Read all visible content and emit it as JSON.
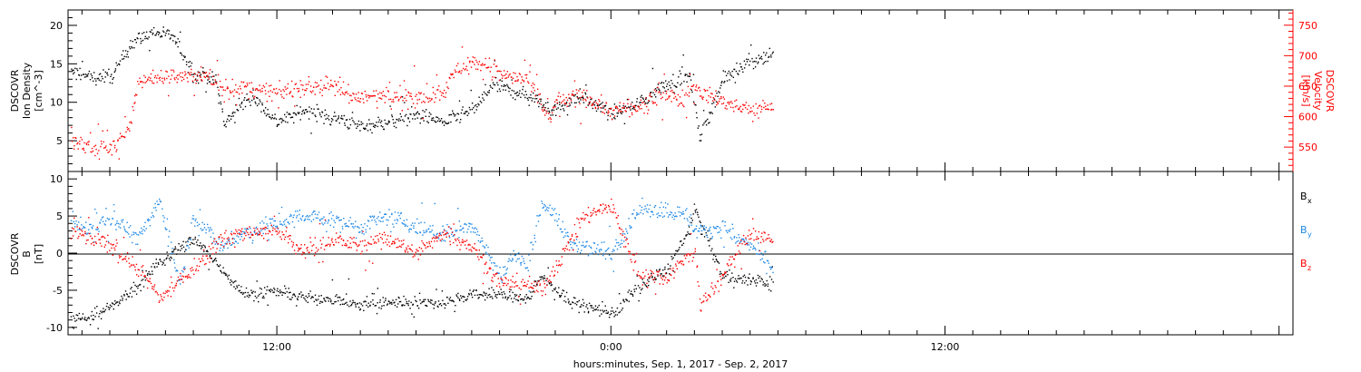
{
  "chart_data": [
    {
      "type": "scatter",
      "panel": "top",
      "ylabel_lines": [
        "DSCOVR",
        "Ion Density",
        "[cm^-3]"
      ],
      "ylabel_right_lines": [
        "DSCOVR",
        "Velocity",
        "[km/s]"
      ],
      "ylim": [
        1,
        22
      ],
      "yticks": [
        5,
        10,
        15,
        20
      ],
      "ylim_right": [
        510,
        775
      ],
      "yticks_right": [
        550,
        600,
        650,
        700,
        750
      ],
      "xlim_hours": [
        -19.5,
        24.5
      ],
      "xticks": [
        {
          "h": -12,
          "label": "12:00"
        },
        {
          "h": 0,
          "label": "0:00"
        },
        {
          "h": 12,
          "label": "12:00"
        }
      ],
      "series": [
        {
          "name": "",
          "axis": "left",
          "color": "#000000",
          "x": [
            -19.4,
            -18.7,
            -17.9,
            -17.2,
            -16.4,
            -15.8,
            -15.0,
            -14.2,
            -13.9,
            -13.5,
            -12.9,
            -12.0,
            -11.0,
            -10.0,
            -9.0,
            -8.0,
            -7.0,
            -6.0,
            -5.0,
            -4.2,
            -4.0,
            -3.0,
            -2.0,
            -1.2,
            0.0,
            1.0,
            2.0,
            2.8,
            3.2,
            4.0,
            5.0,
            5.8
          ],
          "y": [
            14.0,
            13.3,
            13.5,
            18.0,
            19.2,
            18.8,
            14.0,
            13.0,
            7.0,
            9.0,
            11.0,
            7.5,
            9.0,
            8.0,
            7.0,
            7.5,
            8.5,
            7.5,
            9.0,
            12.5,
            12.0,
            11.0,
            9.0,
            11.0,
            8.5,
            10.0,
            12.5,
            13.5,
            5.5,
            13.0,
            15.5,
            16.3
          ]
        },
        {
          "name": "",
          "axis": "right",
          "color": "#ff0000",
          "x": [
            -19.4,
            -18.7,
            -17.9,
            -17.3,
            -17.0,
            -16.4,
            -15.5,
            -14.5,
            -14.0,
            -13.0,
            -12.0,
            -11.0,
            -10.0,
            -9.0,
            -8.0,
            -7.0,
            -6.0,
            -5.5,
            -5.0,
            -4.2,
            -4.0,
            -3.0,
            -2.2,
            -2.0,
            -1.0,
            0.0,
            1.0,
            2.0,
            2.5,
            3.0,
            3.2,
            4.0,
            5.0,
            5.8
          ],
          "y": [
            560,
            551,
            552,
            580,
            660,
            665,
            668,
            665,
            650,
            645,
            640,
            650,
            650,
            630,
            640,
            630,
            645,
            680,
            690,
            680,
            670,
            660,
            595,
            625,
            635,
            610,
            615,
            640,
            625,
            655,
            640,
            625,
            610,
            620
          ]
        }
      ]
    },
    {
      "type": "scatter",
      "panel": "bottom",
      "ylabel_lines": [
        "DSCOVR",
        "B",
        "[nT]"
      ],
      "ylim": [
        -11,
        11
      ],
      "yticks": [
        -10,
        -5,
        0,
        5,
        10
      ],
      "xlim_hours": [
        -19.5,
        24.5
      ],
      "xlabel": "hours:minutes, Sep.  1, 2017 - Sep.  2, 2017",
      "xticks": [
        {
          "h": -12,
          "label": "12:00"
        },
        {
          "h": 0,
          "label": "0:00"
        },
        {
          "h": 12,
          "label": "12:00"
        }
      ],
      "zero_line": true,
      "series": [
        {
          "name": "Bx",
          "color": "#000000",
          "x": [
            -19.4,
            -18.7,
            -17.9,
            -17.0,
            -16.2,
            -15.0,
            -14.0,
            -13.2,
            -12.0,
            -11.0,
            -10.0,
            -9.0,
            -8.0,
            -7.0,
            -6.0,
            -5.0,
            -4.0,
            -3.0,
            -2.5,
            -1.5,
            -0.5,
            0.2,
            0.8,
            2.0,
            2.8,
            3.0,
            4.0,
            5.0,
            5.8
          ],
          "y": [
            -9,
            -8.5,
            -7,
            -4.5,
            -1,
            2,
            -2,
            -5.5,
            -5,
            -6,
            -6,
            -7,
            -6.5,
            -6.5,
            -6.5,
            -5.5,
            -5.5,
            -6,
            -3,
            -6.5,
            -7.5,
            -8,
            -5,
            -2,
            3,
            6,
            -3,
            -3.5,
            -4
          ]
        },
        {
          "name": "By",
          "color": "#1e88e5",
          "x": [
            -19.4,
            -18.7,
            -17.9,
            -17.0,
            -16.2,
            -15.5,
            -15.0,
            -14.0,
            -13.0,
            -12.0,
            -11.0,
            -10.0,
            -9.0,
            -8.0,
            -7.0,
            -6.0,
            -5.0,
            -4.0,
            -3.5,
            -3.0,
            -2.5,
            -2.0,
            -1.5,
            -1.0,
            0.0,
            1.0,
            2.0,
            2.8,
            3.0,
            4.0,
            5.0,
            5.8
          ],
          "y": [
            4,
            3.5,
            5,
            2,
            7,
            -4,
            5,
            1,
            3,
            4,
            5,
            4.5,
            3.5,
            5,
            3.5,
            2.5,
            4,
            -3,
            0,
            -2,
            7,
            5,
            1.5,
            1,
            0,
            6,
            6,
            5,
            3,
            3.5,
            1,
            -2
          ]
        },
        {
          "name": "Bz",
          "color": "#ff0000",
          "x": [
            -19.4,
            -18.7,
            -17.9,
            -17.0,
            -16.2,
            -15.0,
            -14.0,
            -13.0,
            -12.0,
            -11.0,
            -10.0,
            -9.0,
            -8.0,
            -7.0,
            -6.0,
            -5.0,
            -4.0,
            -3.0,
            -2.5,
            -2.0,
            -1.0,
            0.0,
            1.0,
            2.0,
            3.0,
            3.2,
            4.0,
            5.0,
            5.8
          ],
          "y": [
            3,
            2,
            1,
            -2,
            -6,
            -2,
            2,
            3,
            3,
            0,
            2,
            1,
            2,
            0,
            3,
            1,
            -4,
            -4,
            -5,
            -2,
            5,
            6.5,
            -3,
            -3,
            0.5,
            -7,
            -3,
            3,
            1.5
          ]
        }
      ]
    }
  ],
  "legend": [
    {
      "base": "B",
      "sub": "x",
      "color": "#000000"
    },
    {
      "base": "B",
      "sub": "y",
      "color": "#1e88e5"
    },
    {
      "base": "B",
      "sub": "z",
      "color": "#ff0000"
    }
  ]
}
